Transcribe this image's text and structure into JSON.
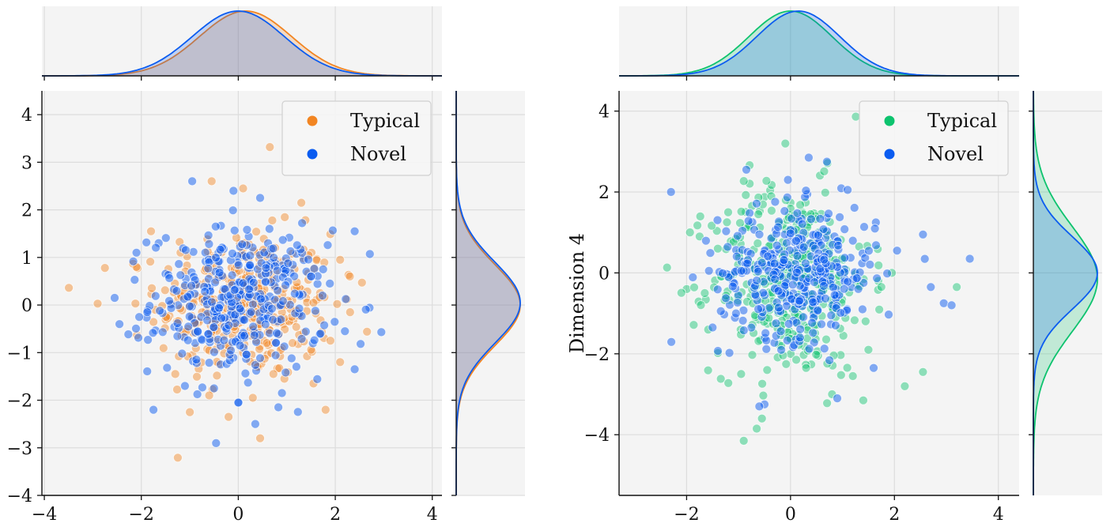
{
  "chart_data": [
    {
      "type": "scatter",
      "title": "",
      "xlabel": "",
      "ylabel": "",
      "xlim": [
        -4.05,
        4.2
      ],
      "ylim": [
        -4.0,
        4.5
      ],
      "xticks": [
        -4,
        -2,
        0,
        2,
        4
      ],
      "yticks": [
        -4,
        -3,
        -2,
        -1,
        0,
        1,
        2,
        3,
        4
      ],
      "xtick_labels": [
        "−4",
        "−2",
        "0",
        "2",
        "4"
      ],
      "ytick_labels": [
        "−4",
        "−3",
        "−2",
        "−1",
        "0",
        "1",
        "2",
        "3",
        "4"
      ],
      "grid": true,
      "legend_position": "top-right",
      "marginals": "kde",
      "series": [
        {
          "name": "Typical",
          "color": "#f28522",
          "x_mean": 0.15,
          "x_sd": 0.95,
          "y_mean": 0.0,
          "y_sd": 0.85,
          "points": [
            [
              0.65,
              3.32
            ],
            [
              -2.9,
              0.03
            ],
            [
              -2.75,
              0.78
            ],
            [
              2.55,
              0.47
            ],
            [
              2.1,
              -1.2
            ],
            [
              1.8,
              -2.2
            ],
            [
              -1.0,
              -2.25
            ],
            [
              0.45,
              -2.8
            ],
            [
              -0.55,
              2.6
            ],
            [
              0.1,
              2.45
            ],
            [
              1.3,
              2.15
            ],
            [
              -1.8,
              1.55
            ],
            [
              2.1,
              0.95
            ],
            [
              -1.3,
              -1.45
            ],
            [
              0.3,
              -1.95
            ],
            [
              1.55,
              -1.65
            ],
            [
              -0.6,
              -1.9
            ],
            [
              0.95,
              -1.55
            ],
            [
              -0.2,
              -2.35
            ],
            [
              2.3,
              0.6
            ],
            [
              1.9,
              -0.75
            ],
            [
              -2.1,
              0.8
            ]
          ]
        },
        {
          "name": "Novel",
          "color": "#0b5cf0",
          "x_mean": 0.0,
          "x_sd": 0.95,
          "y_mean": 0.05,
          "y_sd": 0.85,
          "points": [
            [
              -0.95,
              2.6
            ],
            [
              0.45,
              2.25
            ],
            [
              -0.1,
              2.4
            ],
            [
              2.4,
              1.55
            ],
            [
              2.95,
              -0.57
            ],
            [
              2.4,
              -1.35
            ],
            [
              -1.75,
              -2.2
            ],
            [
              0.35,
              -2.5
            ],
            [
              0.9,
              -1.85
            ],
            [
              -2.55,
              0.15
            ],
            [
              -2.45,
              -0.4
            ],
            [
              1.75,
              0.75
            ],
            [
              -1.1,
              -1.7
            ],
            [
              2.2,
              -0.55
            ],
            [
              -0.5,
              -1.75
            ],
            [
              1.5,
              0.6
            ],
            [
              -2.1,
              1.1
            ],
            [
              0.0,
              -2.05
            ]
          ]
        }
      ]
    },
    {
      "type": "scatter",
      "title": "",
      "xlabel": "",
      "ylabel": "Dimension 4",
      "xlim": [
        -3.3,
        4.4
      ],
      "ylim": [
        -5.5,
        4.5
      ],
      "xticks": [
        -2,
        0,
        2,
        4
      ],
      "yticks": [
        -4,
        -2,
        0,
        2,
        4
      ],
      "xtick_labels": [
        "−2",
        "0",
        "2",
        "4"
      ],
      "ytick_labels": [
        "−4",
        "−2",
        "0",
        "2",
        "4"
      ],
      "grid": true,
      "legend_position": "top-right",
      "marginals": "kde",
      "series": [
        {
          "name": "Typical",
          "color": "#0dc36e",
          "x_mean": 0.0,
          "x_sd": 0.8,
          "y_mean": -0.15,
          "y_sd": 1.3,
          "points": [
            [
              -0.9,
              -4.15
            ],
            [
              -0.55,
              -3.6
            ],
            [
              -0.65,
              -3.85
            ],
            [
              -0.1,
              3.2
            ],
            [
              3.2,
              -0.35
            ],
            [
              2.2,
              -2.8
            ],
            [
              2.55,
              -2.45
            ],
            [
              1.4,
              -3.15
            ],
            [
              0.8,
              -3.0
            ],
            [
              -1.75,
              0.9
            ],
            [
              -1.65,
              -0.5
            ],
            [
              -1.2,
              1.5
            ],
            [
              -0.45,
              -2.4
            ],
            [
              1.2,
              -2.55
            ],
            [
              1.5,
              -1.9
            ],
            [
              1.95,
              0.0
            ],
            [
              -0.95,
              -2.5
            ],
            [
              0.3,
              -2.35
            ],
            [
              -1.4,
              0.6
            ],
            [
              -1.2,
              -0.1
            ]
          ]
        },
        {
          "name": "Novel",
          "color": "#0b5cf0",
          "x_mean": 0.15,
          "x_sd": 0.8,
          "y_mean": 0.0,
          "y_sd": 0.9,
          "points": [
            [
              -2.3,
              2.0
            ],
            [
              -0.85,
              2.55
            ],
            [
              3.45,
              0.35
            ],
            [
              2.55,
              0.95
            ],
            [
              2.95,
              -0.75
            ],
            [
              3.1,
              -0.8
            ],
            [
              -0.5,
              -3.25
            ],
            [
              0.9,
              -3.1
            ],
            [
              0.7,
              2.75
            ],
            [
              0.35,
              2.85
            ],
            [
              -0.05,
              2.3
            ],
            [
              -1.05,
              -1.0
            ],
            [
              2.05,
              0.55
            ],
            [
              1.6,
              -2.35
            ],
            [
              -0.6,
              -3.3
            ],
            [
              2.7,
              -0.35
            ],
            [
              -1.5,
              -1.35
            ],
            [
              1.1,
              2.05
            ]
          ]
        }
      ]
    }
  ]
}
